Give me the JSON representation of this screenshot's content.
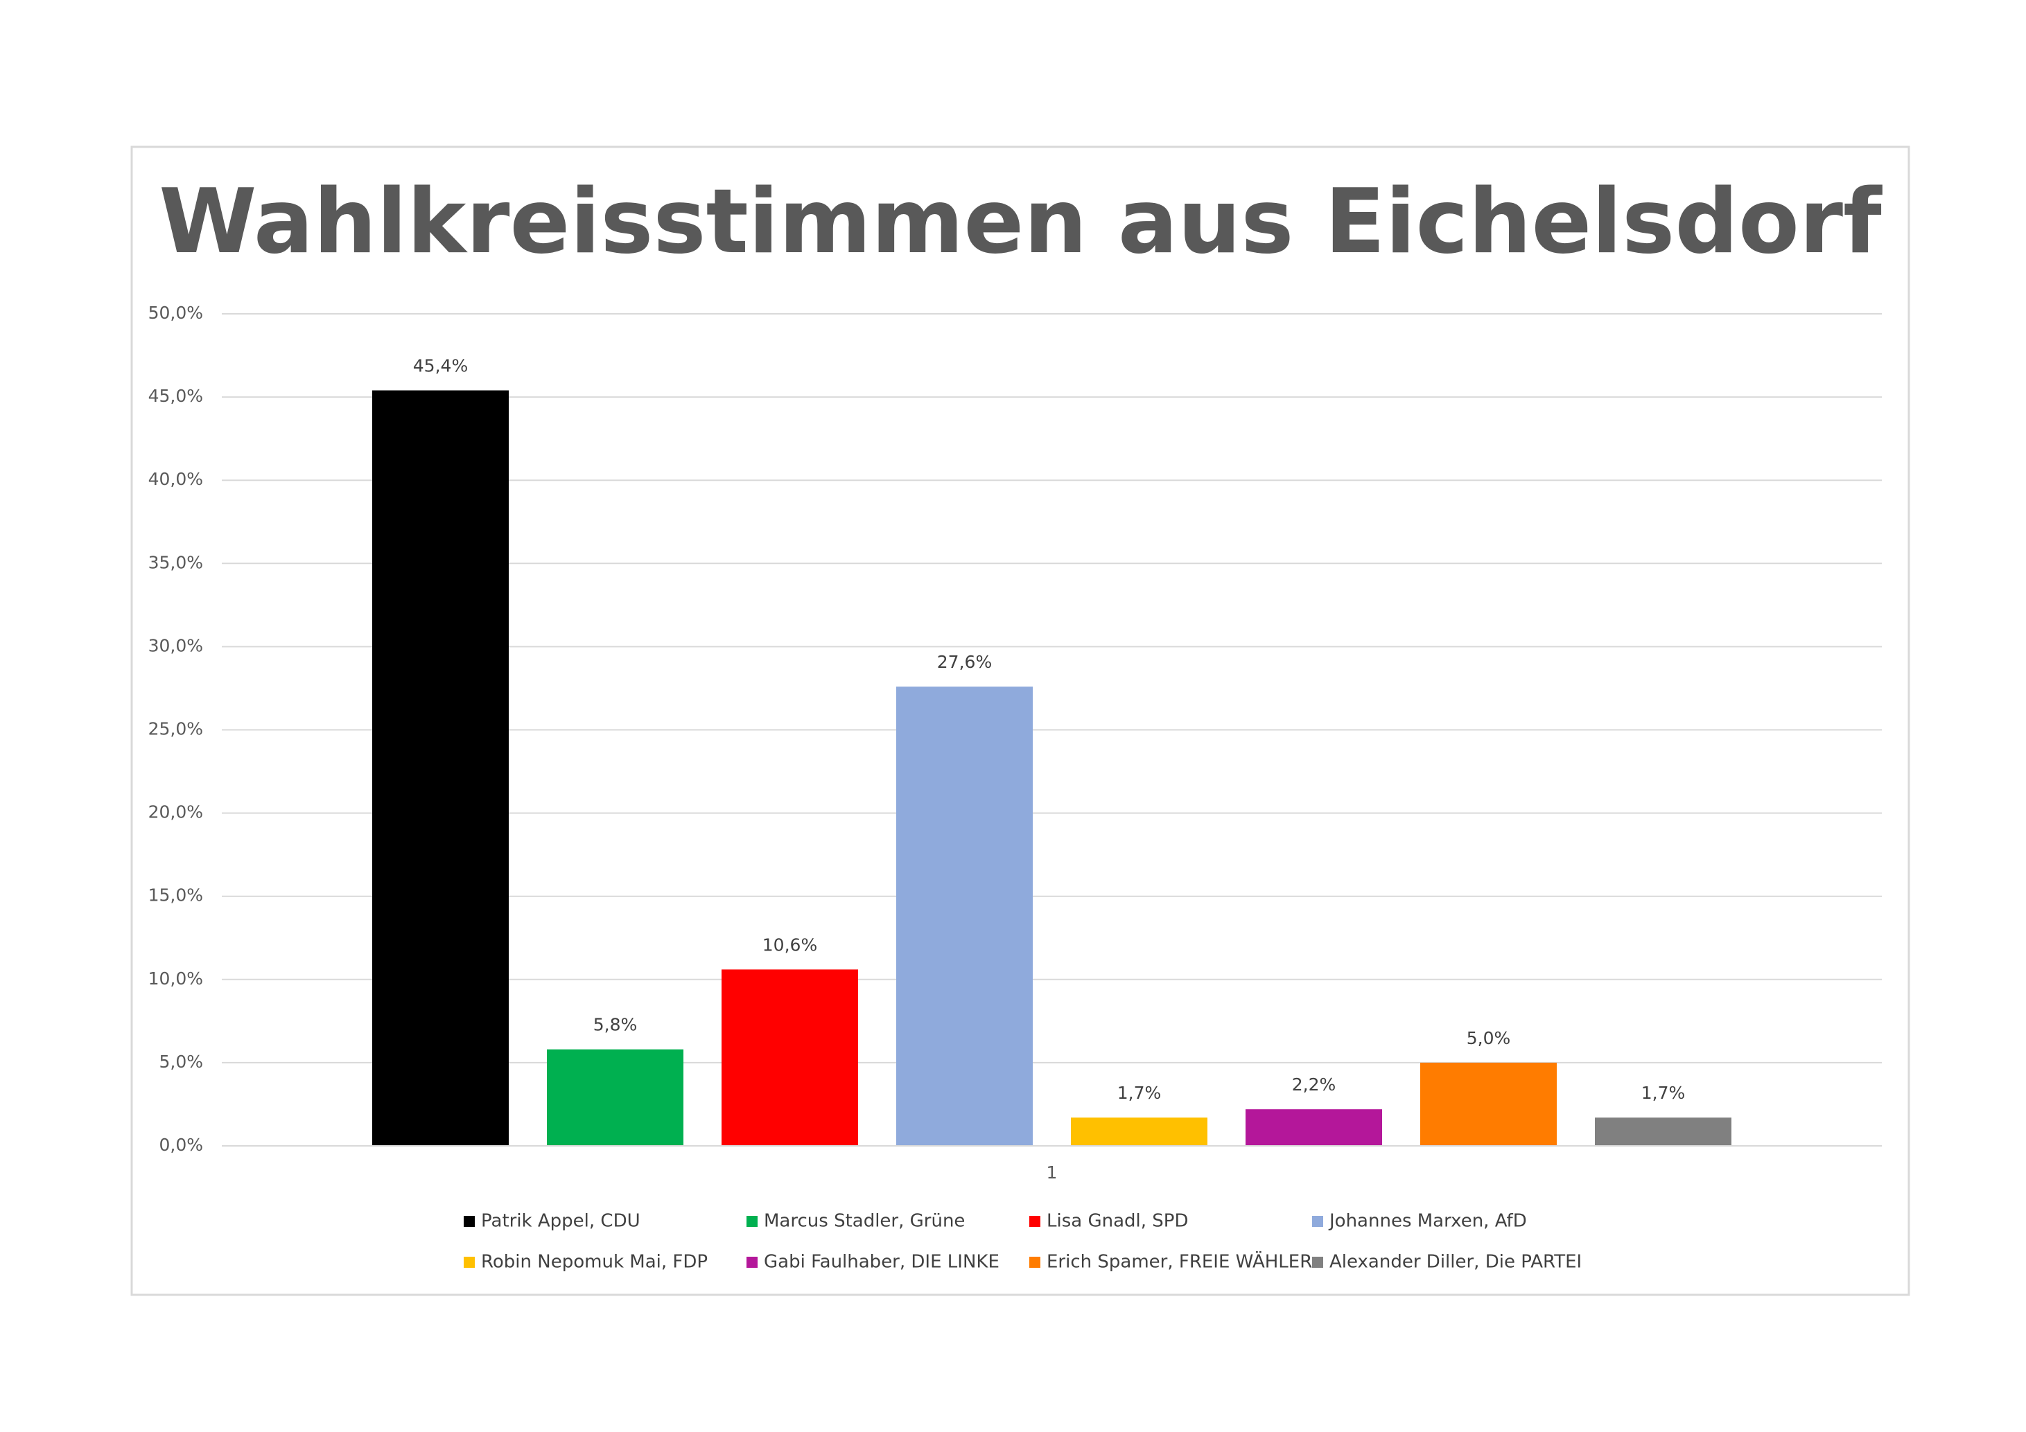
{
  "chart_data": {
    "type": "bar",
    "title": "Wahlkreisstimmen aus Eichelsdorf",
    "categories": [
      "1"
    ],
    "series": [
      {
        "name": "Patrik Appel, CDU",
        "color": "#000000",
        "values": [
          45.4
        ],
        "value_labels": [
          "45,4%"
        ]
      },
      {
        "name": "Marcus Stadler, Grüne",
        "color": "#00b050",
        "values": [
          5.8
        ],
        "value_labels": [
          "5,8%"
        ]
      },
      {
        "name": "Lisa Gnadl, SPD",
        "color": "#ff0000",
        "values": [
          10.6
        ],
        "value_labels": [
          "10,6%"
        ]
      },
      {
        "name": "Johannes Marxen, AfD",
        "color": "#8faadc",
        "values": [
          27.6
        ],
        "value_labels": [
          "27,6%"
        ]
      },
      {
        "name": "Robin Nepomuk Mai, FDP",
        "color": "#ffc000",
        "values": [
          1.7
        ],
        "value_labels": [
          "1,7%"
        ]
      },
      {
        "name": "Gabi Faulhaber, DIE LINKE",
        "color": "#b4179a",
        "values": [
          2.2
        ],
        "value_labels": [
          "2,2%"
        ]
      },
      {
        "name": "Erich Spamer, FREIE WÄHLER",
        "color": "#ff7c00",
        "values": [
          5.0
        ],
        "value_labels": [
          "5,0%"
        ]
      },
      {
        "name": "Alexander Diller, Die PARTEI",
        "color": "#808080",
        "values": [
          1.7
        ],
        "value_labels": [
          "1,7%"
        ]
      }
    ],
    "ylim": [
      0,
      50
    ],
    "yticks": [
      {
        "value": 0,
        "label": "0,0%"
      },
      {
        "value": 5,
        "label": "5,0%"
      },
      {
        "value": 10,
        "label": "10,0%"
      },
      {
        "value": 15,
        "label": "15,0%"
      },
      {
        "value": 20,
        "label": "20,0%"
      },
      {
        "value": 25,
        "label": "25,0%"
      },
      {
        "value": 30,
        "label": "30,0%"
      },
      {
        "value": 35,
        "label": "35,0%"
      },
      {
        "value": 40,
        "label": "40,0%"
      },
      {
        "value": 45,
        "label": "45,0%"
      },
      {
        "value": 50,
        "label": "50,0%"
      }
    ],
    "grid": true,
    "legend": "bottom"
  }
}
